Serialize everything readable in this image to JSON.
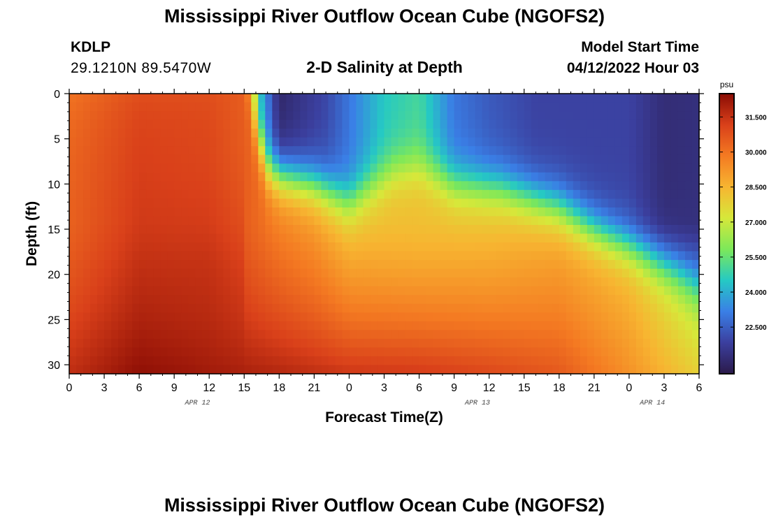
{
  "page": {
    "title": "Mississippi River Outflow Ocean Cube (NGOFS2)",
    "title_repeat": "Mississippi River Outflow Ocean Cube (NGOFS2)",
    "station": "KDLP",
    "coordinates": "29.1210N  89.5470W",
    "subtitle": "2-D Salinity at Depth",
    "model_start_label": "Model Start Time",
    "model_start_value": "04/12/2022 Hour 03"
  },
  "chart_data": {
    "type": "heatmap",
    "xlabel": "Forecast Time(Z)",
    "ylabel": "Depth (ft)",
    "x_tick_labels": [
      "0",
      "3",
      "6",
      "9",
      "12",
      "15",
      "18",
      "21",
      "0",
      "3",
      "6",
      "9",
      "12",
      "15",
      "18",
      "21",
      "0",
      "3",
      "6"
    ],
    "x_range_hours": [
      0,
      54
    ],
    "date_labels": [
      {
        "label": "APR 12",
        "hour": 11
      },
      {
        "label": "APR 13",
        "hour": 35
      },
      {
        "label": "APR 14",
        "hour": 50
      }
    ],
    "y_ticks": [
      0,
      5,
      10,
      15,
      20,
      25,
      30
    ],
    "y_range": [
      0,
      31
    ],
    "y_inverted": true,
    "colorbar": {
      "unit": "psu",
      "ticks": [
        31.5,
        30.0,
        28.5,
        27.0,
        25.5,
        24.0,
        22.5
      ],
      "tick_labels": [
        "31.500",
        "30.000",
        "28.500",
        "27.000",
        "25.500",
        "24.000",
        "22.500"
      ],
      "range": [
        20.5,
        32.5
      ],
      "colormap": [
        "#2b1a4a",
        "#3b3f9e",
        "#3a7fe6",
        "#25c9c4",
        "#7ce85a",
        "#d6e83a",
        "#f7b531",
        "#f47a22",
        "#d9401a",
        "#8a0c04"
      ]
    },
    "sample_points": [
      {
        "hour": 0,
        "depth": 0,
        "salinity": 30.0
      },
      {
        "hour": 0,
        "depth": 31,
        "salinity": 31.5
      },
      {
        "hour": 7,
        "depth": 28,
        "salinity": 32.3
      },
      {
        "hour": 15,
        "depth": 3,
        "salinity": 28.5
      },
      {
        "hour": 18,
        "depth": 1,
        "salinity": 21.2
      },
      {
        "hour": 21,
        "depth": 20,
        "salinity": 29.5
      },
      {
        "hour": 27,
        "depth": 15,
        "salinity": 28.0
      },
      {
        "hour": 30,
        "depth": 0,
        "salinity": 25.0
      },
      {
        "hour": 39,
        "depth": 3,
        "salinity": 22.0
      },
      {
        "hour": 44,
        "depth": 20,
        "salinity": 26.5
      },
      {
        "hour": 52,
        "depth": 2,
        "salinity": 21.3
      },
      {
        "hour": 54,
        "depth": 20,
        "salinity": 24.5
      },
      {
        "hour": 54,
        "depth": 31,
        "salinity": 27.5
      }
    ]
  }
}
